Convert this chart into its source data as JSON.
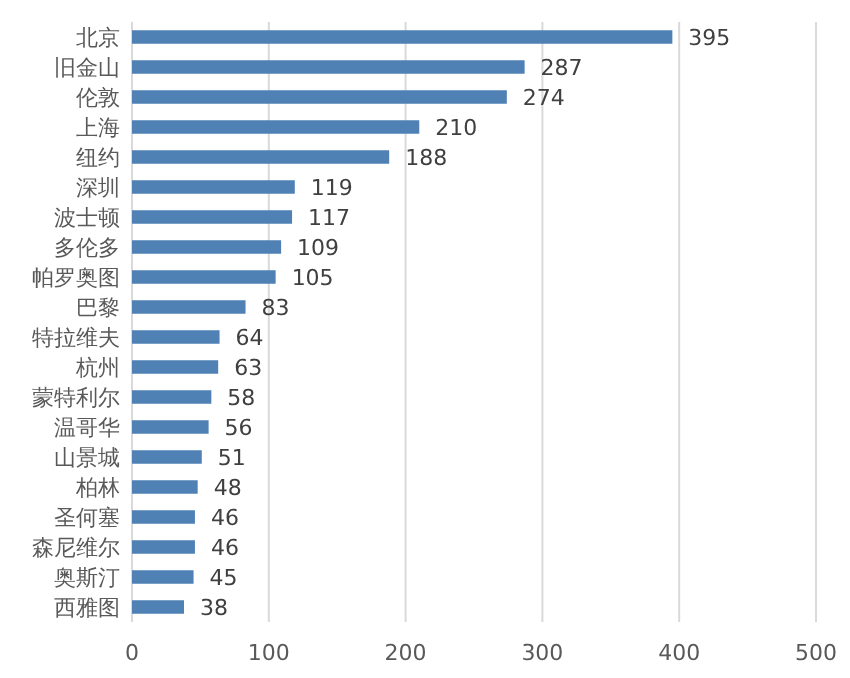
{
  "chart_data": {
    "type": "bar",
    "orientation": "horizontal",
    "categories": [
      "北京",
      "旧金山",
      "伦敦",
      "上海",
      "纽约",
      "深圳",
      "波士顿",
      "多伦多",
      "帕罗奥图",
      "巴黎",
      "特拉维夫",
      "杭州",
      "蒙特利尔",
      "温哥华",
      "山景城",
      "柏林",
      "圣何塞",
      "森尼维尔",
      "奥斯汀",
      "西雅图"
    ],
    "values": [
      395,
      287,
      274,
      210,
      188,
      119,
      117,
      109,
      105,
      83,
      64,
      63,
      58,
      56,
      51,
      48,
      46,
      46,
      45,
      38
    ],
    "color": "#4f81b5",
    "xlim": [
      0,
      500
    ],
    "xticks": [
      0,
      100,
      200,
      300,
      400,
      500
    ],
    "grid": "x",
    "data_labels": true
  }
}
